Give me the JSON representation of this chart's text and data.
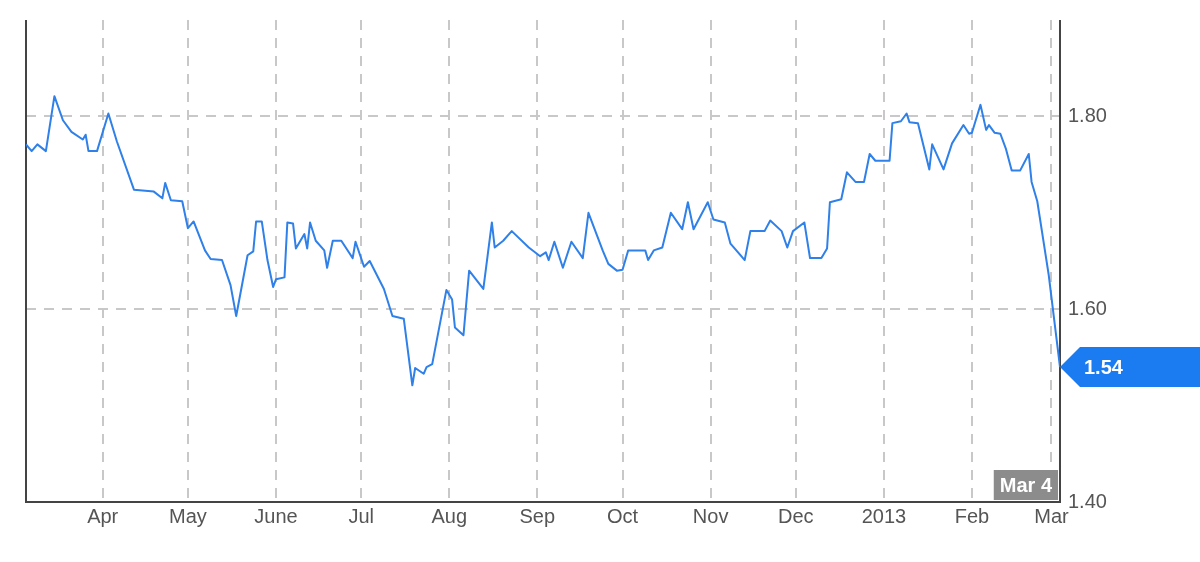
{
  "chart_data": {
    "type": "line",
    "xlim": [
      "2012-03-05",
      "2013-03-04"
    ],
    "ylim": [
      1.4,
      1.9
    ],
    "xticks": [
      {
        "value": "2012-04-01",
        "label": "Apr"
      },
      {
        "value": "2012-05-01",
        "label": "May"
      },
      {
        "value": "2012-06-01",
        "label": "June"
      },
      {
        "value": "2012-07-01",
        "label": "Jul"
      },
      {
        "value": "2012-08-01",
        "label": "Aug"
      },
      {
        "value": "2012-09-01",
        "label": "Sep"
      },
      {
        "value": "2012-10-01",
        "label": "Oct"
      },
      {
        "value": "2012-11-01",
        "label": "Nov"
      },
      {
        "value": "2012-12-01",
        "label": "Dec"
      },
      {
        "value": "2013-01-01",
        "label": "2013"
      },
      {
        "value": "2013-02-01",
        "label": "Feb"
      },
      {
        "value": "2013-03-01",
        "label": "Mar"
      }
    ],
    "yticks": [
      {
        "value": 1.4,
        "label": "1.40"
      },
      {
        "value": 1.6,
        "label": "1.60"
      },
      {
        "value": 1.8,
        "label": "1.80"
      }
    ],
    "grid": true,
    "legend": false,
    "marker": "none",
    "line_style": "solid",
    "annotations": [
      {
        "text": "1.54",
        "x": "2013-03-04",
        "y": 1.54
      },
      "Mar 4"
    ],
    "series": [
      {
        "color": "#2f80e8",
        "x": [
          "2012-03-05",
          "2012-03-07",
          "2012-03-09",
          "2012-03-12",
          "2012-03-15",
          "2012-03-18",
          "2012-03-21",
          "2012-03-25",
          "2012-03-26",
          "2012-03-27",
          "2012-03-30",
          "2012-04-03",
          "2012-04-06",
          "2012-04-12",
          "2012-04-19",
          "2012-04-22",
          "2012-04-23",
          "2012-04-25",
          "2012-04-29",
          "2012-05-01",
          "2012-05-03",
          "2012-05-07",
          "2012-05-09",
          "2012-05-13",
          "2012-05-16",
          "2012-05-18",
          "2012-05-22",
          "2012-05-24",
          "2012-05-25",
          "2012-05-27",
          "2012-05-29",
          "2012-05-31",
          "2012-06-01",
          "2012-06-04",
          "2012-06-05",
          "2012-06-07",
          "2012-06-08",
          "2012-06-11",
          "2012-06-12",
          "2012-06-13",
          "2012-06-15",
          "2012-06-18",
          "2012-06-19",
          "2012-06-21",
          "2012-06-24",
          "2012-06-28",
          "2012-06-29",
          "2012-07-02",
          "2012-07-04",
          "2012-07-09",
          "2012-07-12",
          "2012-07-16",
          "2012-07-19",
          "2012-07-20",
          "2012-07-23",
          "2012-07-24",
          "2012-07-26",
          "2012-07-31",
          "2012-08-02",
          "2012-08-03",
          "2012-08-06",
          "2012-08-08",
          "2012-08-13",
          "2012-08-16",
          "2012-08-17",
          "2012-08-20",
          "2012-08-23",
          "2012-08-29",
          "2012-09-02",
          "2012-09-04",
          "2012-09-05",
          "2012-09-07",
          "2012-09-10",
          "2012-09-13",
          "2012-09-17",
          "2012-09-19",
          "2012-09-24",
          "2012-09-26",
          "2012-09-29",
          "2012-10-01",
          "2012-10-03",
          "2012-10-09",
          "2012-10-10",
          "2012-10-12",
          "2012-10-15",
          "2012-10-18",
          "2012-10-22",
          "2012-10-24",
          "2012-10-26",
          "2012-10-31",
          "2012-11-02",
          "2012-11-06",
          "2012-11-08",
          "2012-11-13",
          "2012-11-15",
          "2012-11-20",
          "2012-11-22",
          "2012-11-26",
          "2012-11-28",
          "2012-11-30",
          "2012-12-04",
          "2012-12-06",
          "2012-12-10",
          "2012-12-12",
          "2012-12-13",
          "2012-12-17",
          "2012-12-19",
          "2012-12-22",
          "2012-12-25",
          "2012-12-27",
          "2012-12-29",
          "2013-01-03",
          "2013-01-04",
          "2013-01-07",
          "2013-01-09",
          "2013-01-10",
          "2013-01-13",
          "2013-01-17",
          "2013-01-18",
          "2013-01-22",
          "2013-01-25",
          "2013-01-29",
          "2013-01-31",
          "2013-02-01",
          "2013-02-04",
          "2013-02-06",
          "2013-02-07",
          "2013-02-09",
          "2013-02-11",
          "2013-02-13",
          "2013-02-15",
          "2013-02-18",
          "2013-02-21",
          "2013-02-22",
          "2013-02-24",
          "2013-02-28",
          "2013-03-04"
        ],
        "values": [
          1.771,
          1.764,
          1.771,
          1.764,
          1.821,
          1.796,
          1.784,
          1.776,
          1.781,
          1.764,
          1.764,
          1.803,
          1.774,
          1.724,
          1.722,
          1.715,
          1.731,
          1.713,
          1.712,
          1.684,
          1.691,
          1.661,
          1.652,
          1.651,
          1.625,
          1.593,
          1.656,
          1.66,
          1.691,
          1.691,
          1.651,
          1.623,
          1.631,
          1.633,
          1.69,
          1.689,
          1.663,
          1.678,
          1.663,
          1.69,
          1.671,
          1.661,
          1.643,
          1.671,
          1.671,
          1.653,
          1.67,
          1.644,
          1.65,
          1.621,
          1.593,
          1.59,
          1.521,
          1.539,
          1.533,
          1.54,
          1.543,
          1.62,
          1.61,
          1.581,
          1.573,
          1.64,
          1.621,
          1.69,
          1.664,
          1.671,
          1.681,
          1.664,
          1.655,
          1.659,
          1.651,
          1.67,
          1.643,
          1.67,
          1.653,
          1.7,
          1.661,
          1.647,
          1.64,
          1.641,
          1.661,
          1.661,
          1.651,
          1.661,
          1.664,
          1.7,
          1.683,
          1.711,
          1.683,
          1.711,
          1.693,
          1.69,
          1.668,
          1.651,
          1.681,
          1.681,
          1.692,
          1.681,
          1.664,
          1.681,
          1.69,
          1.653,
          1.653,
          1.663,
          1.711,
          1.714,
          1.742,
          1.732,
          1.732,
          1.761,
          1.754,
          1.754,
          1.793,
          1.795,
          1.803,
          1.794,
          1.793,
          1.745,
          1.771,
          1.745,
          1.772,
          1.791,
          1.782,
          1.783,
          1.812,
          1.786,
          1.791,
          1.783,
          1.782,
          1.766,
          1.744,
          1.744,
          1.761,
          1.732,
          1.712,
          1.636,
          1.54
        ]
      }
    ]
  }
}
